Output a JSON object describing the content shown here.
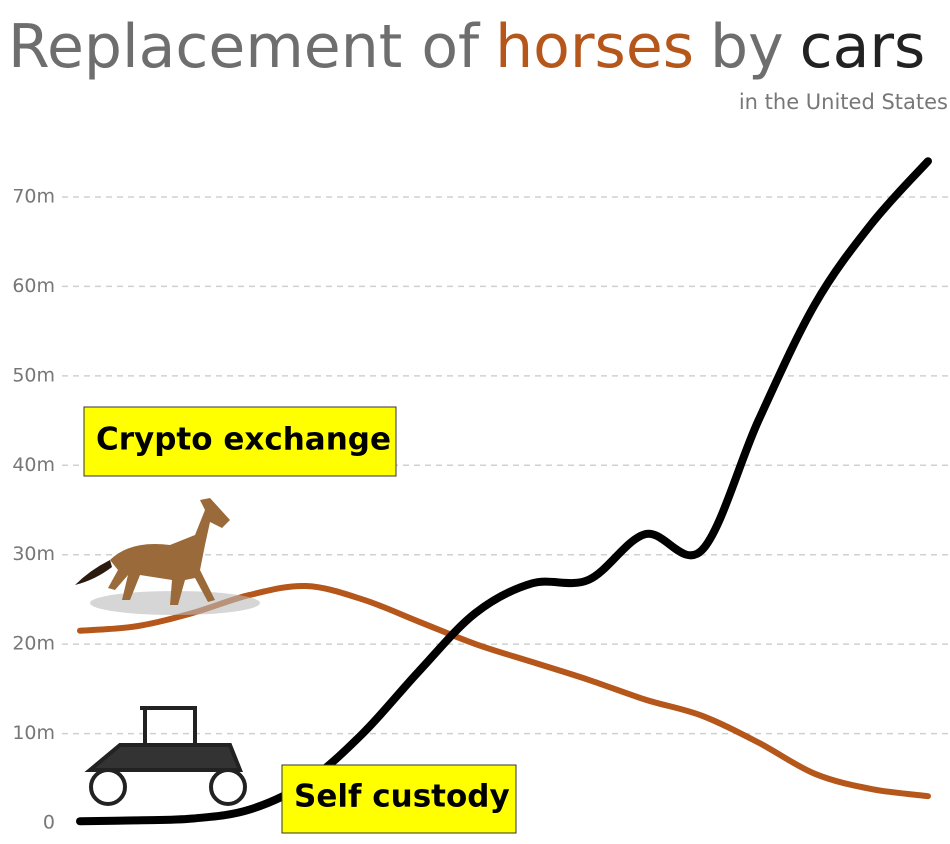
{
  "chart_data": {
    "type": "line",
    "title": [
      {
        "text": "Replacement of",
        "color": "#6e6e6e"
      },
      {
        "text": "horses",
        "color": "#b5561a"
      },
      {
        "text": "by",
        "color": "#6e6e6e"
      },
      {
        "text": "cars",
        "color": "#222222"
      }
    ],
    "subtitle": "in the United States",
    "categories": [
      null,
      null,
      null,
      null,
      null,
      null,
      null,
      null,
      null,
      null,
      null,
      null,
      null,
      null,
      null,
      null
    ],
    "series": [
      {
        "color": "#b5561a",
        "values": [
          21.5,
          22,
          23.5,
          25.5,
          26.5,
          25,
          22.5,
          20,
          18,
          16,
          13.8,
          12,
          9,
          5.5,
          3.8,
          3
        ]
      },
      {
        "color": "#000000",
        "values": [
          0.2,
          0.3,
          0.5,
          1.5,
          4.5,
          10,
          17,
          23.5,
          26.8,
          27.2,
          32.3,
          30.5,
          45,
          58,
          67,
          74
        ]
      }
    ],
    "ylim": [
      0,
      75
    ],
    "yticks": [
      0,
      {
        "value": 10,
        "label": "10m"
      },
      {
        "value": 20,
        "label": "20m"
      },
      {
        "value": 30,
        "label": "30m"
      },
      {
        "value": 40,
        "label": "40m"
      },
      {
        "value": 50,
        "label": "50m"
      },
      {
        "value": 60,
        "label": "60m"
      },
      {
        "value": 70,
        "label": "70m"
      }
    ],
    "grid": true,
    "annotations": [
      "Crypto exchange",
      "Self custody"
    ]
  }
}
